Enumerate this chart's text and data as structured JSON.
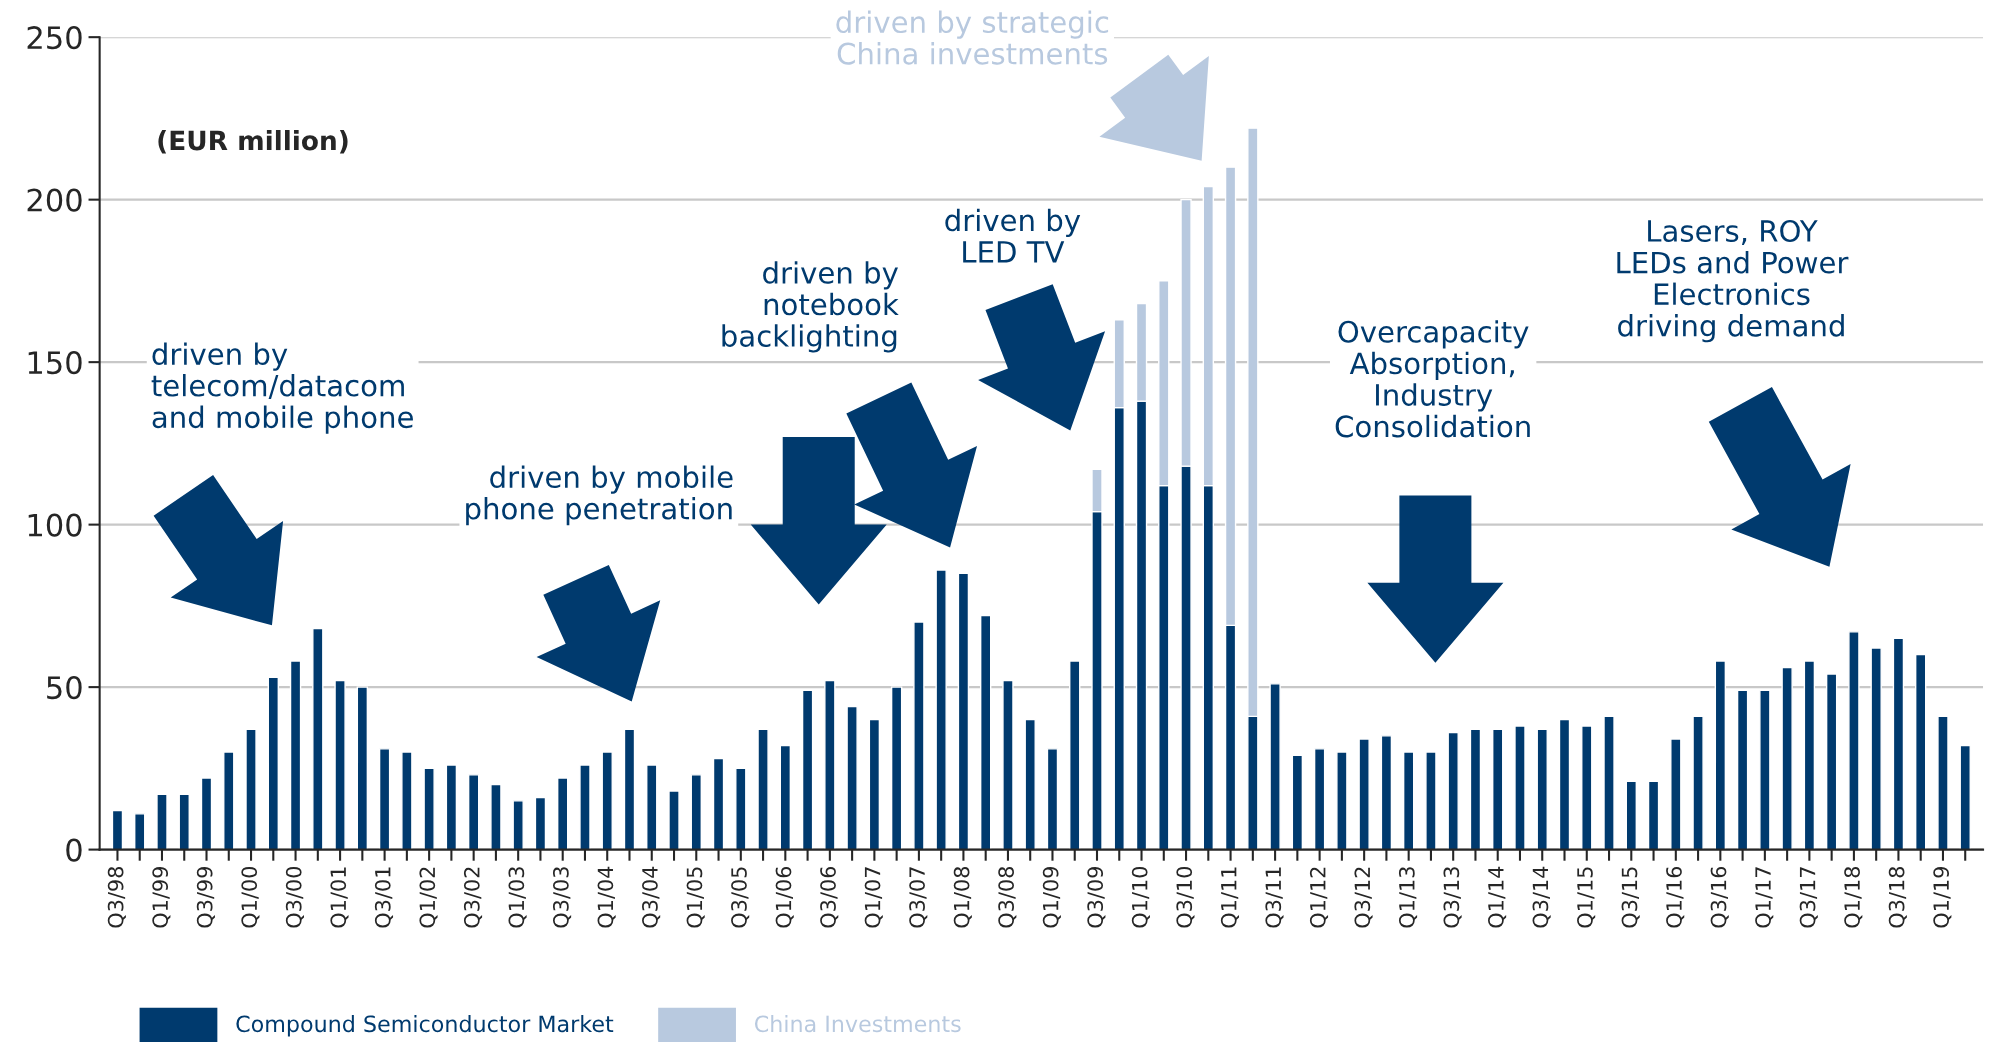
{
  "chart_data": {
    "type": "bar",
    "stacked": true,
    "ylabel": "(EUR million)",
    "categories": [
      "Q3/98",
      null,
      "Q1/99",
      null,
      "Q3/99",
      null,
      "Q1/00",
      null,
      "Q3/00",
      null,
      "Q1/01",
      null,
      "Q3/01",
      null,
      "Q1/02",
      null,
      "Q3/02",
      null,
      "Q1/03",
      null,
      "Q3/03",
      null,
      "Q1/04",
      null,
      "Q3/04",
      null,
      "Q1/05",
      null,
      "Q3/05",
      null,
      "Q1/06",
      null,
      "Q3/06",
      null,
      "Q1/07",
      null,
      "Q3/07",
      null,
      "Q1/08",
      null,
      "Q3/08",
      null,
      "Q1/09",
      null,
      "Q3/09",
      null,
      "Q1/10",
      null,
      "Q3/10",
      null,
      "Q1/11",
      null,
      "Q3/11",
      null,
      "Q1/12",
      null,
      "Q3/12",
      null,
      "Q1/13",
      null,
      "Q3/13",
      null,
      "Q1/14",
      null,
      "Q3/14",
      null,
      "Q1/15",
      null,
      "Q3/15",
      null,
      "Q1/16",
      null,
      "Q3/16",
      null,
      "Q1/17",
      null,
      "Q3/17",
      null,
      "Q1/18",
      null,
      "Q3/18",
      null,
      "Q1/19",
      null
    ],
    "series": [
      {
        "name": "Compound Semiconductor Market",
        "color": "#003a6e",
        "values": [
          12,
          11,
          17,
          17,
          22,
          30,
          37,
          53,
          58,
          68,
          52,
          50,
          31,
          30,
          25,
          26,
          23,
          20,
          15,
          16,
          22,
          26,
          30,
          37,
          26,
          18,
          23,
          28,
          25,
          37,
          32,
          49,
          52,
          44,
          40,
          50,
          70,
          86,
          85,
          72,
          52,
          40,
          31,
          58,
          104,
          136,
          138,
          112,
          118,
          112,
          69,
          41,
          51,
          29,
          31,
          30,
          34,
          35,
          30,
          30,
          36,
          37,
          37,
          38,
          37,
          40,
          38,
          41,
          21,
          21,
          34,
          41,
          58,
          49,
          49,
          56,
          58,
          54,
          67,
          62,
          65,
          60,
          41,
          32
        ]
      },
      {
        "name": "China Investments",
        "color": "#b8c9df",
        "values": [
          null,
          null,
          null,
          null,
          null,
          null,
          null,
          null,
          null,
          null,
          null,
          null,
          null,
          null,
          null,
          null,
          null,
          null,
          null,
          null,
          null,
          null,
          null,
          null,
          null,
          null,
          null,
          null,
          null,
          null,
          null,
          null,
          null,
          null,
          null,
          null,
          null,
          null,
          null,
          null,
          null,
          null,
          null,
          null,
          13,
          27,
          30,
          63,
          82,
          92,
          141,
          181,
          null,
          null,
          null,
          null,
          null,
          null,
          null,
          null,
          null,
          null,
          null,
          null,
          null,
          null,
          null,
          null,
          null,
          null,
          null,
          null,
          null,
          null,
          null,
          null,
          null,
          null,
          null,
          null,
          null,
          null,
          null,
          null
        ]
      }
    ],
    "ylim": [
      0,
      250
    ],
    "yticks": [
      0,
      50,
      100,
      150,
      200,
      250
    ],
    "grid": "y",
    "legend": "bottom left",
    "annotations": [
      "driven by\ntelecom/datacom\nand mobile phone",
      "driven by mobile\nphone penetration",
      "driven by\nnotebook\nbacklighting",
      "driven by\nLED TV",
      "driven by strategic\nChina investments",
      "Overcapacity\nAbsorption,\nIndustry\nConsolidation",
      "Lasers, ROY\nLEDs and Power\nElectronics\ndriving demand"
    ]
  }
}
